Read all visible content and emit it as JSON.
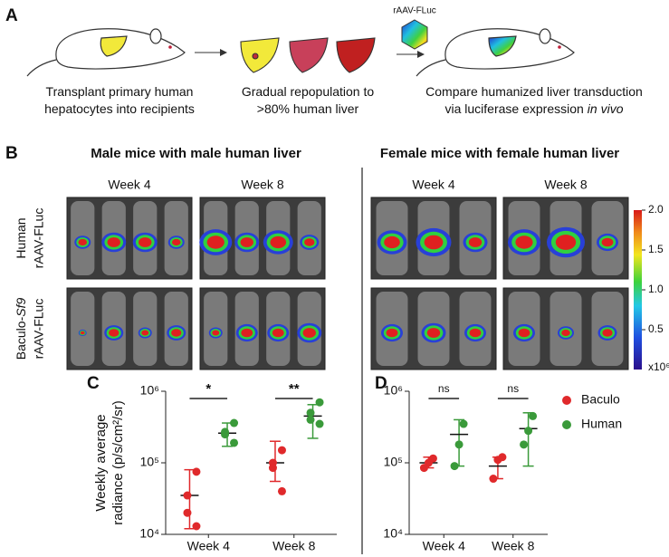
{
  "panel_a": {
    "letter": "A",
    "vector": "rAAV-FLuc",
    "steps": [
      {
        "lines": [
          "Transplant primary human",
          "hepatocytes into recipients"
        ]
      },
      {
        "lines": [
          "Gradual repopulation to",
          ">80% human liver"
        ]
      },
      {
        "lines": [
          "Compare humanized liver transduction",
          "via luciferase expression"
        ],
        "italic": "in vivo"
      }
    ]
  },
  "panel_b": {
    "letter": "B",
    "groups": [
      {
        "title": "Male mice with male human liver",
        "weeks": [
          "Week 4",
          "Week 8"
        ]
      },
      {
        "title": "Female mice with female human liver",
        "weeks": [
          "Week 4",
          "Week 8"
        ]
      }
    ],
    "rows": [
      {
        "line1": "Human",
        "line2": "rAAV-FLuc"
      },
      {
        "line1": "Baculo-",
        "italic": "Sf9",
        "line2": "rAAV-FLuc"
      }
    ],
    "colorbar": {
      "ticks": [
        0.5,
        {
          "value": 1,
          "label": "1.0"
        },
        1.5,
        {
          "value": 2,
          "label": "2.0"
        }
      ],
      "unit": "x10⁶",
      "lim": [
        0,
        2
      ]
    }
  },
  "chart_data": [
    {
      "type": "scatter",
      "panel": "C",
      "ylabel": [
        "Weekly average",
        "radiance (p/s/cm²/sr)"
      ],
      "categories": [
        "Week 4",
        "Week 8"
      ],
      "log_y": true,
      "ylim": [
        10000,
        1000000
      ],
      "yticks": [
        {
          "value": 10000,
          "label": "10⁴"
        },
        {
          "value": 100000,
          "label": "10⁵"
        },
        {
          "value": 1000000,
          "label": "10⁶"
        }
      ],
      "annotations": [
        "*",
        "**"
      ],
      "series": [
        {
          "color": "#e0292b",
          "points": [
            [
              75000,
              35000,
              20000,
              13000
            ],
            [
              150000,
              100000,
              85000,
              40000
            ]
          ],
          "mean": [
            35000,
            100000
          ],
          "err_low": [
            12000,
            55000
          ],
          "err_high": [
            80000,
            200000
          ]
        },
        {
          "color": "#3a9a3a",
          "points": [
            [
              360000,
              270000,
              250000,
              190000
            ],
            [
              700000,
              500000,
              400000,
              350000
            ]
          ],
          "mean": [
            260000,
            450000
          ],
          "err_low": [
            170000,
            220000
          ],
          "err_high": [
            360000,
            650000
          ]
        }
      ]
    },
    {
      "type": "scatter",
      "panel": "D",
      "categories": [
        "Week 4",
        "Week 8"
      ],
      "log_y": true,
      "ylim": [
        10000,
        1000000
      ],
      "yticks": [
        {
          "value": 10000,
          "label": "10⁴"
        },
        {
          "value": 100000,
          "label": "10⁵"
        },
        {
          "value": 1000000,
          "label": "10⁶"
        }
      ],
      "annotations": [
        "ns",
        "ns"
      ],
      "legend": "right",
      "series": [
        {
          "name": "Baculo",
          "color": "#e0292b",
          "points": [
            [
              115000,
              100000,
              85000
            ],
            [
              120000,
              110000,
              60000
            ]
          ],
          "mean": [
            100000,
            90000
          ],
          "err_low": [
            85000,
            60000
          ],
          "err_high": [
            120000,
            120000
          ]
        },
        {
          "name": "Human",
          "color": "#3a9a3a",
          "points": [
            [
              350000,
              180000,
              90000
            ],
            [
              450000,
              280000,
              180000
            ]
          ],
          "mean": [
            250000,
            300000
          ],
          "err_low": [
            90000,
            90000
          ],
          "err_high": [
            400000,
            500000
          ]
        }
      ]
    }
  ]
}
